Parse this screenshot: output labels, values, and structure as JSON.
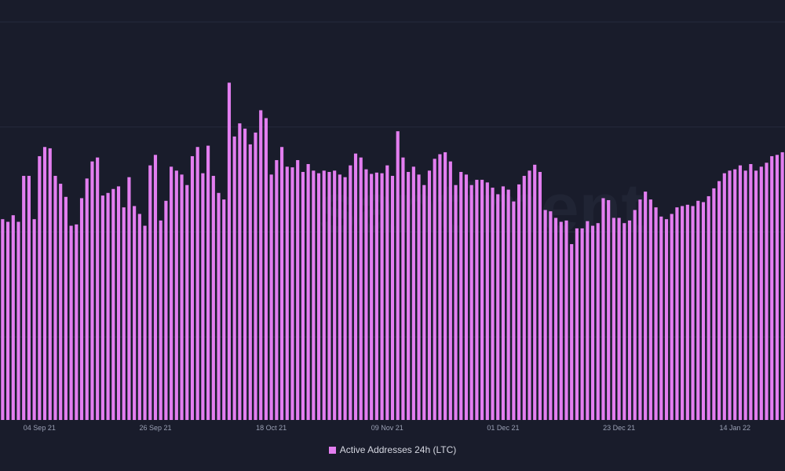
{
  "chart_data": {
    "type": "bar",
    "title": "",
    "xlabel": "",
    "ylabel": "",
    "x_tick_labels": [
      "04 Sep 21",
      "26 Sep 21",
      "18 Oct 21",
      "09 Nov 21",
      "01 Dec 21",
      "23 Dec 21",
      "14 Jan 22"
    ],
    "x_tick_bar_index": [
      7,
      29,
      51,
      73,
      95,
      117,
      139
    ],
    "y_axis_visible": false,
    "ylim": [
      0,
      640
    ],
    "grid": "horizontal",
    "legend_position": "bottom-center",
    "series": [
      {
        "name": "Active Addresses 24h (LTC)",
        "color": "#e37ef0",
        "values": [
          306,
          302,
          312,
          302,
          372,
          372,
          306,
          402,
          416,
          414,
          372,
          360,
          340,
          296,
          298,
          338,
          368,
          394,
          400,
          342,
          346,
          352,
          356,
          324,
          370,
          326,
          314,
          296,
          388,
          404,
          304,
          334,
          386,
          380,
          374,
          358,
          402,
          416,
          376,
          418,
          372,
          346,
          336,
          514,
          432,
          452,
          444,
          420,
          438,
          472,
          460,
          374,
          396,
          416,
          386,
          385,
          396,
          378,
          390,
          380,
          376,
          380,
          378,
          380,
          374,
          370,
          388,
          406,
          400,
          382,
          375,
          377,
          376,
          388,
          372,
          440,
          400,
          378,
          386,
          374,
          358,
          380,
          398,
          405,
          408,
          394,
          358,
          378,
          374,
          358,
          366,
          366,
          362,
          354,
          344,
          356,
          351,
          333,
          359,
          372,
          380,
          389,
          378,
          320,
          318,
          308,
          302,
          304,
          268,
          292,
          292,
          303,
          296,
          300,
          338,
          335,
          308,
          308,
          300,
          304,
          320,
          336,
          348,
          336,
          324,
          310,
          306,
          314,
          324,
          326,
          328,
          326,
          334,
          332,
          341,
          353,
          364,
          376,
          380,
          382,
          388,
          380,
          390,
          380,
          386,
          392,
          402,
          404,
          408
        ]
      }
    ],
    "annotations": [
      "santiment"
    ]
  },
  "legend": {
    "label": "Active Addresses 24h (LTC)"
  }
}
